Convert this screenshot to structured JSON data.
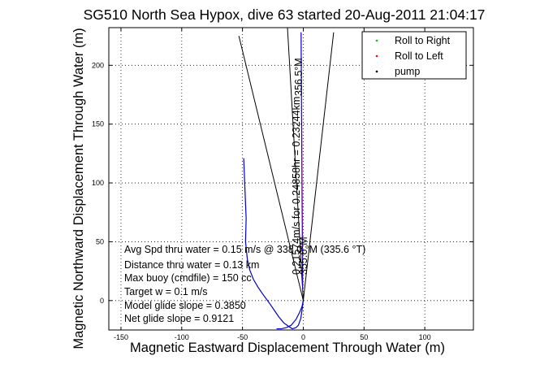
{
  "chart_data": {
    "type": "line",
    "title": "SG510 North Sea Hypox, dive 63 started 20-Aug-2011 21:04:17",
    "xlabel": "Magnetic Eastward Displacement Through Water (m)",
    "ylabel": "Magnetic Northward Displacement Through Water (m)",
    "xlim": [
      -160,
      140
    ],
    "ylim": [
      -25,
      232
    ],
    "x_ticks": [
      "-150",
      "-100",
      "-50",
      "0",
      "50",
      "100"
    ],
    "y_ticks": [
      "0",
      "50",
      "100",
      "150",
      "200"
    ],
    "grid": true,
    "legend": {
      "placement": "top-right",
      "entries": [
        {
          "label": "Roll to Right",
          "color": "#00cc00"
        },
        {
          "label": "Roll to Left",
          "color": "#ff0000"
        },
        {
          "label": "pump",
          "color": "#000000"
        }
      ]
    },
    "series": [
      {
        "color": "#0000cc",
        "x": [
          -49,
          -48,
          -47,
          -47.5,
          -46,
          -44,
          -41,
          -37,
          -33,
          -28,
          -24,
          -20,
          -16,
          -12,
          -9,
          -6,
          -4,
          -2,
          -1,
          0
        ],
        "y": [
          121,
          95,
          70,
          50,
          35,
          26,
          18,
          11,
          5,
          -2,
          -8,
          -14,
          -19,
          -22,
          -24,
          -23,
          -21,
          -15,
          -8,
          0
        ]
      },
      {
        "color": "#0000cc",
        "x": [
          -22,
          -18,
          -14,
          -10,
          -6,
          -3,
          -1,
          0
        ],
        "y": [
          -24,
          -24,
          -23,
          -21,
          -16,
          -10,
          -5,
          0
        ]
      },
      {
        "color": "#0000cc",
        "x": [
          -0.5,
          -0.8,
          -1.3,
          -1.8
        ],
        "y": [
          10,
          60,
          140,
          228
        ]
      }
    ],
    "reference_lines": [
      {
        "color": "#000000",
        "x": [
          0,
          -53
        ],
        "y": [
          0,
          225
        ]
      },
      {
        "color": "#000000",
        "x": [
          0,
          25
        ],
        "y": [
          0,
          228
        ]
      },
      {
        "color": "#000000",
        "x": [
          0,
          -13
        ],
        "y": [
          0,
          232
        ]
      }
    ],
    "annotations": {
      "avg_speed": "Avg Spd thru water = 0.15 m/s @ 338.0    °M (335.6 °T)",
      "distance": "Distance thru water = 0.13 km",
      "max_buoy": "Max buoy (cmdfile) = 150 cc",
      "target_w": "Target w = 0.1 m/s",
      "model_glide": "Model glide slope = 0.3850",
      "net_glide": "Net glide slope = 0.9121",
      "current_label": "0.21574m/s for 0.24858hr = 0.23244km",
      "current_heading": "356.5°M",
      "rotated_small": "355.6°M"
    }
  }
}
